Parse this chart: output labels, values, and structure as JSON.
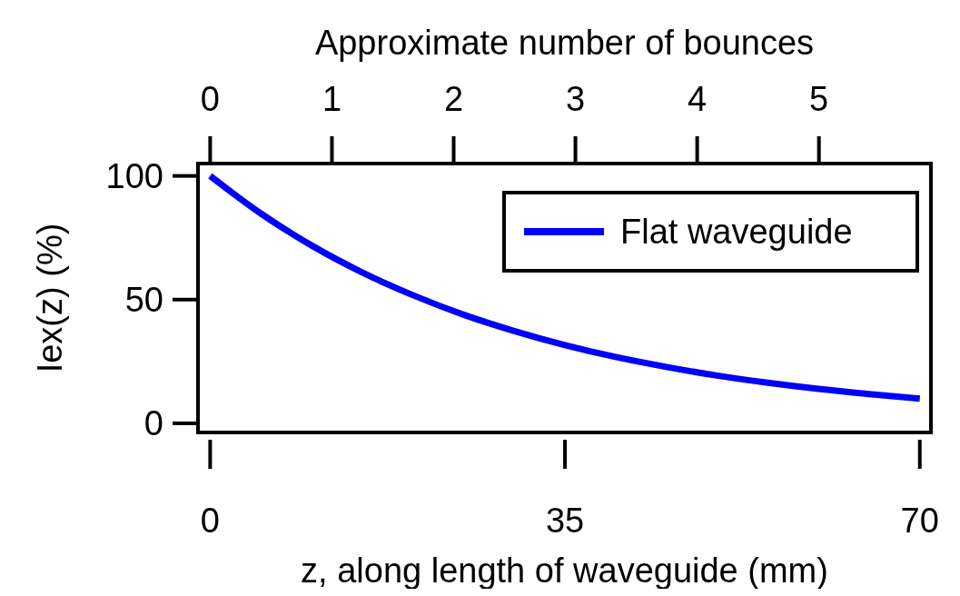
{
  "chart_data": {
    "type": "line",
    "xlabel": "z, along length of waveguide (mm)",
    "x2label": "Approximate number of bounces",
    "ylabel": "Iex(z) (%)",
    "x": [
      0,
      5,
      10,
      15,
      20,
      25,
      30,
      35,
      40,
      45,
      50,
      55,
      60,
      65,
      70
    ],
    "series": [
      {
        "name": "Flat waveguide",
        "color": "#0000ff",
        "values": [
          100,
          84.8,
          71.9,
          61.0,
          51.8,
          43.9,
          37.3,
          31.6,
          26.8,
          22.8,
          19.3,
          16.4,
          13.9,
          11.8,
          10.0
        ]
      }
    ],
    "xlim": [
      -1.2,
      71.1
    ],
    "xticks": [
      0,
      35,
      70
    ],
    "x2lim": [
      -0.1,
      5.92
    ],
    "x2ticks": [
      0,
      1,
      2,
      3,
      4,
      5
    ],
    "ylim": [
      -3.7,
      105
    ],
    "yticks": [
      0,
      50,
      100
    ],
    "legend": "top right",
    "grid": false,
    "line_style": "solid",
    "marker": "none"
  }
}
